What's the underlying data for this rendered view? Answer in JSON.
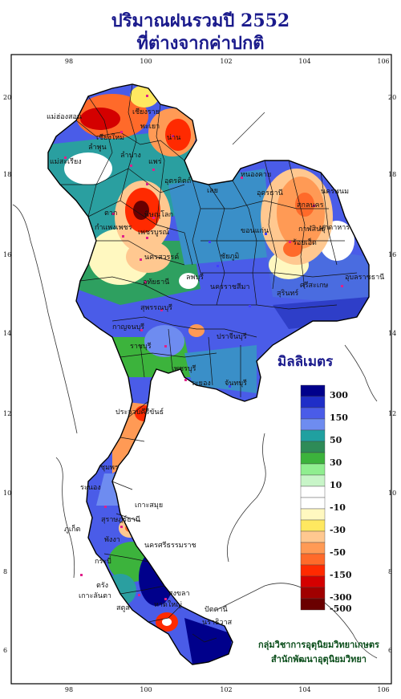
{
  "title_line1": "ปริมาณฝนรวมปี  2552",
  "title_line2": "ที่ต่างจากค่าปกติ",
  "legend": {
    "title": "มิลลิเมตร",
    "bins": [
      {
        "label": "300",
        "color": "#00008b"
      },
      {
        "label": "",
        "color": "#1f2ec8"
      },
      {
        "label": "150",
        "color": "#4a5ce8"
      },
      {
        "label": "",
        "color": "#6e8cf0"
      },
      {
        "label": "50",
        "color": "#20a0a0"
      },
      {
        "label": "",
        "color": "#2e8b57"
      },
      {
        "label": "30",
        "color": "#3cb33c"
      },
      {
        "label": "",
        "color": "#90ee90"
      },
      {
        "label": "10",
        "color": "#c8f5c8"
      },
      {
        "label": "",
        "color": "#ffffff"
      },
      {
        "label": "-10",
        "color": "#ffffff"
      },
      {
        "label": "",
        "color": "#fff8c0"
      },
      {
        "label": "-30",
        "color": "#ffe860"
      },
      {
        "label": "",
        "color": "#ffc890"
      },
      {
        "label": "-50",
        "color": "#ff9a55"
      },
      {
        "label": "",
        "color": "#ff6a2a"
      },
      {
        "label": "-150",
        "color": "#ff2a00"
      },
      {
        "label": "",
        "color": "#d40000"
      },
      {
        "label": "-300",
        "color": "#a00000"
      },
      {
        "label": "-500",
        "color": "#6a0000"
      }
    ]
  },
  "axes": {
    "lon_ticks": [
      "98",
      "100",
      "102",
      "104",
      "106"
    ],
    "lat_ticks": [
      "20",
      "18",
      "16",
      "14",
      "12",
      "10",
      "8",
      "6"
    ]
  },
  "places": [
    "เชียงราย",
    "แม่ฮ่องสอน",
    "พะเยา",
    "เชียงใหม่",
    "น่าน",
    "ลำพูน",
    "ลำปาง",
    "แพร่",
    "แม่สะเรียง",
    "อุตรดิตถ์",
    "หนองคาย",
    "สกลนคร",
    "นครพนม",
    "เลย",
    "อุดรธานี",
    "ตาก",
    "พิษณุโลก",
    "กำแพงเพชร",
    "เพชรบูรณ์",
    "ขอนแก่น",
    "มุกดาหาร",
    "นครสวรรค์",
    "ชัยภูมิ",
    "กาฬสินธุ์",
    "ร้อยเอ็ด",
    "อุทัยธานี",
    "ลพบุรี",
    "นครราชสีมา",
    "สุรินทร์",
    "อุบลราชธานี",
    "ศรีสะเกษ",
    "สุพรรณบุรี",
    "กาญจนบุรี",
    "ปราจีนบุรี",
    "ราชบุรี",
    "ระยอง",
    "จันทบุรี",
    "เพชรบุรี",
    "ประจวบคีรีขันธ์",
    "ชุมพร",
    "ระนอง",
    "สุราษฎร์ธานี",
    "เกาะสมุย",
    "ภูเก็ต",
    "พังงา",
    "นครศรีธรรมราช",
    "กระบี่",
    "ตรัง",
    "สงขลา",
    "ปัตตานี",
    "นราธิวาส",
    "หาดใหญ่",
    "สตูล",
    "เกาะลันตา"
  ],
  "credit_line1": "กลุ่มวิชาการอุตุนิยมวิทยาเกษตร",
  "credit_line2": "สำนักพัฒนาอุตุนิยมวิทยา"
}
